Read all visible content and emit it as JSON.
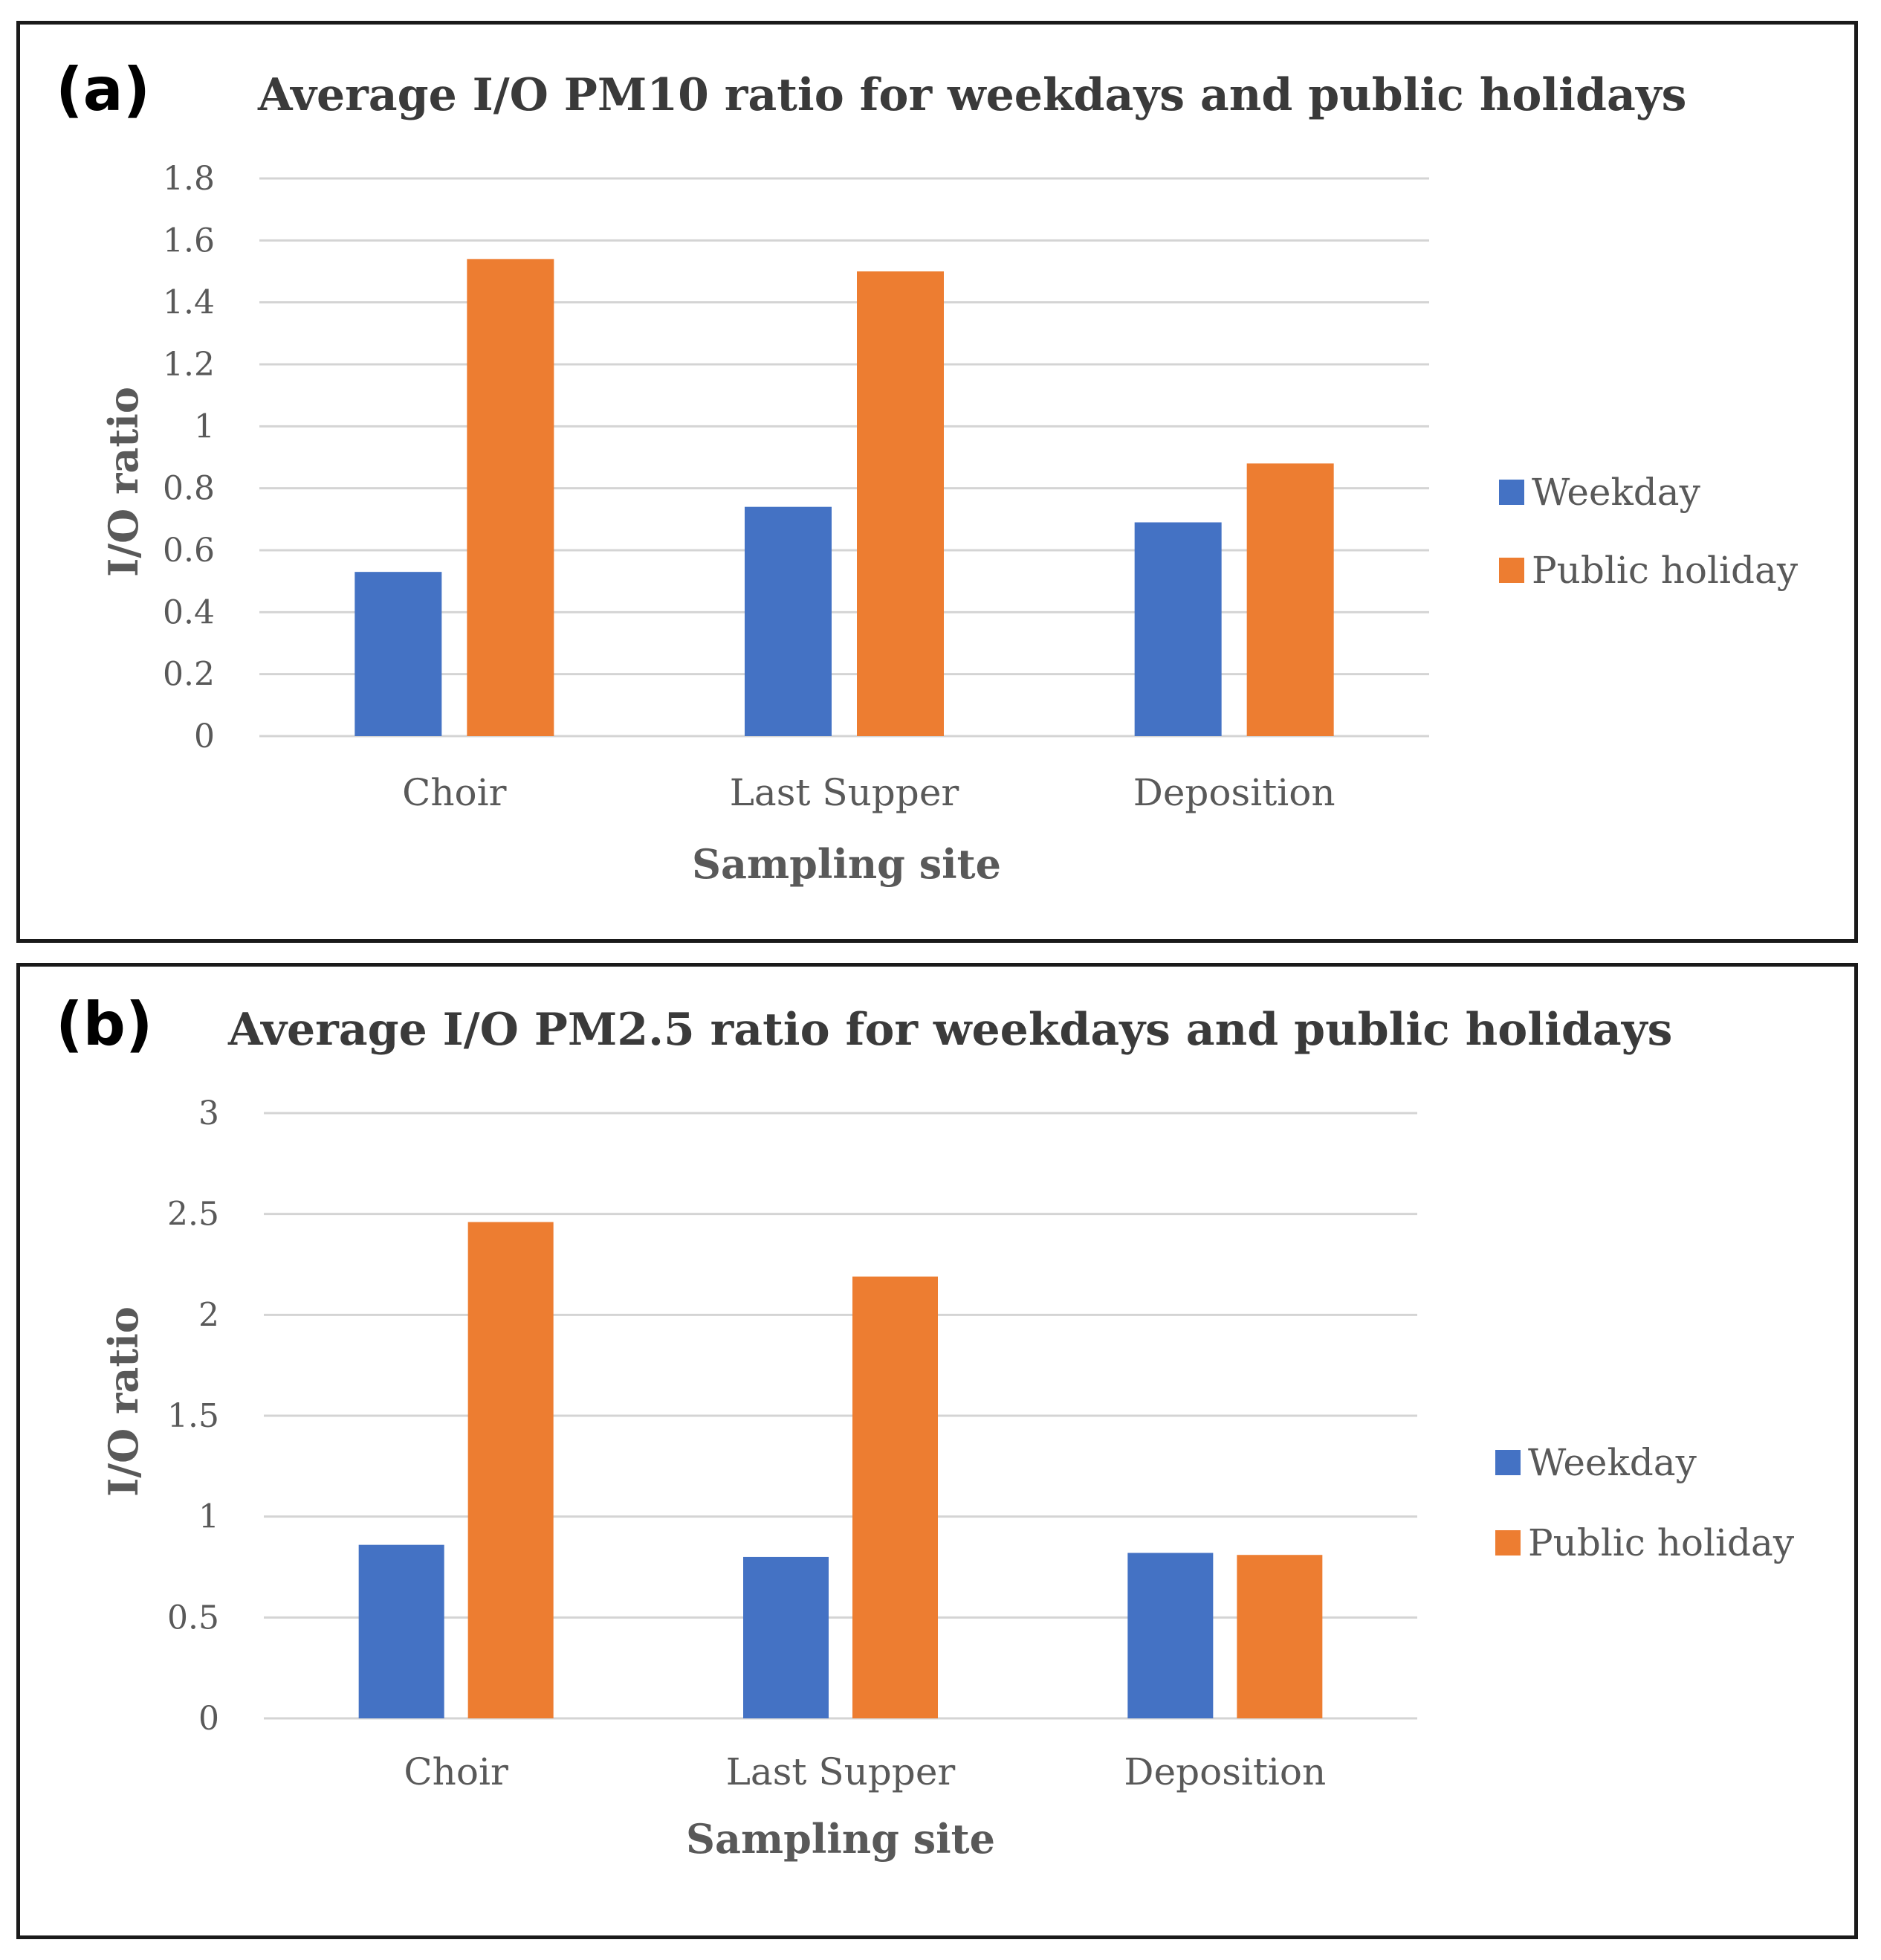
{
  "colors": {
    "weekday": "#4472c4",
    "holiday": "#ed7d31"
  },
  "chart_data": [
    {
      "type": "bar",
      "panel_label": "(a)",
      "title": "Average I/O PM10 ratio for weekdays and public holidays",
      "xlabel": "Sampling site",
      "ylabel": "I/O ratio",
      "categories": [
        "Choir",
        "Last Supper",
        "Deposition"
      ],
      "series": [
        {
          "name": "Weekday",
          "values": [
            0.53,
            0.74,
            0.69
          ]
        },
        {
          "name": "Public holiday",
          "values": [
            1.54,
            1.5,
            0.88
          ]
        }
      ],
      "ylim": [
        0,
        1.8
      ],
      "yticks": [
        "0",
        "0.2",
        "0.4",
        "0.6",
        "0.8",
        "1",
        "1.2",
        "1.4",
        "1.6",
        "1.8"
      ],
      "grid": true,
      "legend": "right"
    },
    {
      "type": "bar",
      "panel_label": "(b)",
      "title": "Average I/O PM2.5 ratio for weekdays and public holidays",
      "xlabel": "Sampling site",
      "ylabel": "I/O ratio",
      "categories": [
        "Choir",
        "Last Supper",
        "Deposition"
      ],
      "series": [
        {
          "name": "Weekday",
          "values": [
            0.86,
            0.8,
            0.82
          ]
        },
        {
          "name": "Public holiday",
          "values": [
            2.46,
            2.19,
            0.81
          ]
        }
      ],
      "ylim": [
        0,
        3
      ],
      "yticks": [
        "0",
        "0.5",
        "1",
        "1.5",
        "2",
        "2.5",
        "3"
      ],
      "grid": true,
      "legend": "right"
    }
  ]
}
